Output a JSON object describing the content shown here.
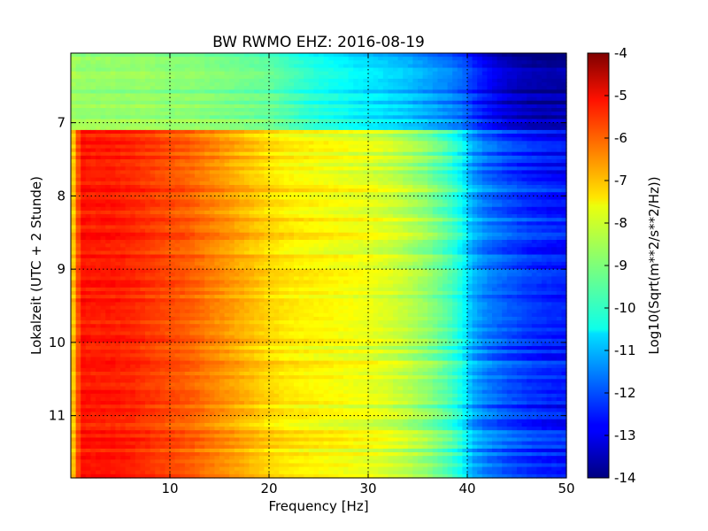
{
  "chart_data": {
    "type": "heatmap",
    "title": "BW RWMO EHZ: 2016-08-19",
    "xlabel": "Frequency [Hz]",
    "ylabel": "Lokalzeit (UTC + 2 Stunde)",
    "xlim": [
      0,
      50
    ],
    "ylim": [
      6.05,
      11.85
    ],
    "y_inverted": true,
    "x_ticks": [
      "10",
      "20",
      "30",
      "40",
      "50"
    ],
    "y_ticks": [
      "7",
      "8",
      "9",
      "10",
      "11"
    ],
    "grid": true,
    "colormap": "jet",
    "colorbar": {
      "label": "Log10(Sqrt(m**2/s**2/Hz))",
      "range": [
        -14,
        -4
      ],
      "ticks": [
        "-4",
        "-5",
        "-6",
        "-7",
        "-8",
        "-9",
        "-10",
        "-11",
        "-12",
        "-13",
        "-14"
      ]
    },
    "profile": {
      "frequency_hz": [
        0,
        1,
        2,
        3,
        4,
        6,
        8,
        10,
        12,
        14,
        16,
        18,
        20,
        22,
        24,
        26,
        28,
        30,
        32,
        34,
        36,
        38,
        39.5,
        40.5,
        42,
        44,
        46,
        48,
        50
      ],
      "before_7h": [
        -8.6,
        -8.8,
        -8.8,
        -8.8,
        -8.8,
        -8.8,
        -8.8,
        -8.9,
        -8.9,
        -9.0,
        -9.1,
        -9.2,
        -9.3,
        -9.6,
        -9.9,
        -10.1,
        -10.3,
        -10.5,
        -10.7,
        -10.9,
        -11.2,
        -11.5,
        -11.8,
        -12.3,
        -12.8,
        -13.3,
        -13.6,
        -13.7,
        -13.7
      ],
      "after_7h": [
        -7.8,
        -5.4,
        -5.5,
        -5.5,
        -5.5,
        -5.6,
        -5.8,
        -6.0,
        -6.2,
        -6.5,
        -6.8,
        -7.1,
        -7.4,
        -7.6,
        -7.7,
        -7.8,
        -7.9,
        -8.0,
        -8.2,
        -8.5,
        -8.9,
        -9.5,
        -10.2,
        -11.1,
        -11.6,
        -12.0,
        -12.3,
        -12.5,
        -12.6
      ]
    },
    "transition_hour": 7.08
  }
}
